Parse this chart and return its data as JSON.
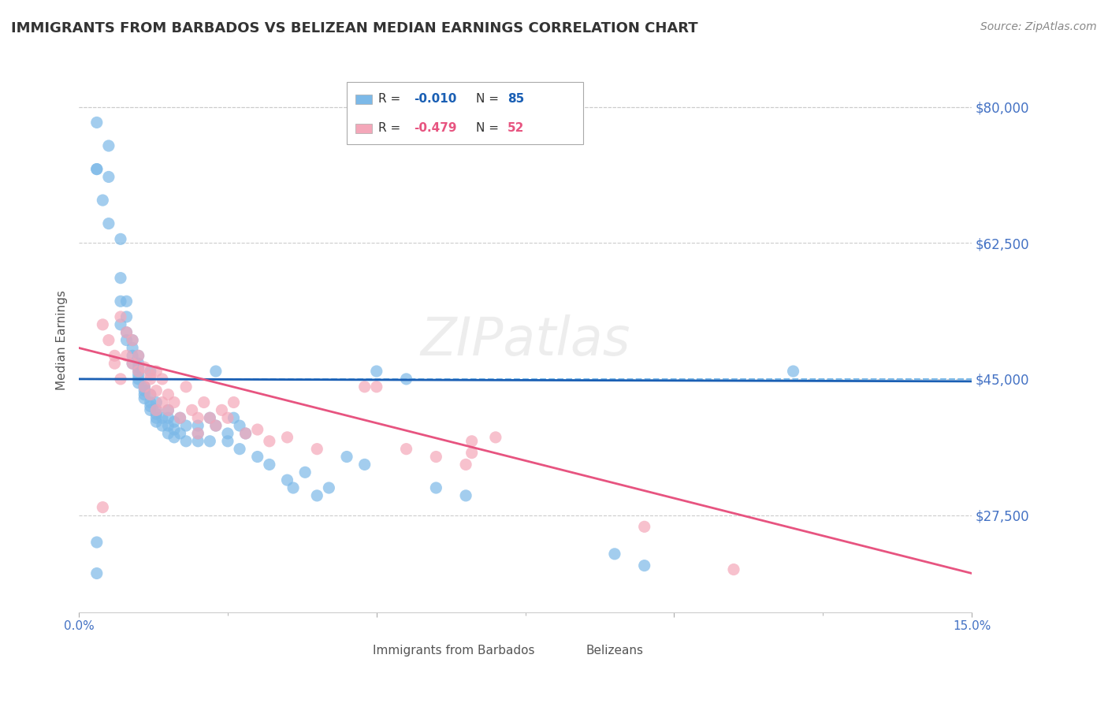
{
  "title": "IMMIGRANTS FROM BARBADOS VS BELIZEAN MEDIAN EARNINGS CORRELATION CHART",
  "source": "Source: ZipAtlas.com",
  "xlabel": "",
  "ylabel": "Median Earnings",
  "xlim": [
    0.0,
    0.15
  ],
  "ylim": [
    15000,
    85000
  ],
  "yticks": [
    17500,
    27500,
    45000,
    62500,
    80000
  ],
  "ytick_labels": [
    "",
    "$27,500",
    "$45,000",
    "$62,500",
    "$80,000"
  ],
  "xticks": [
    0.0,
    0.05,
    0.1,
    0.15
  ],
  "xtick_labels": [
    "0.0%",
    "",
    "",
    "15.0%"
  ],
  "hline_y": 45000,
  "background_color": "#ffffff",
  "grid_color": "#cccccc",
  "blue_color": "#7cb9e8",
  "pink_color": "#f4a7b9",
  "blue_line_color": "#1a5fb4",
  "pink_line_color": "#e75480",
  "axis_label_color": "#4472c4",
  "title_color": "#333333",
  "legend_r1": "R = -0.010",
  "legend_n1": "N = 85",
  "legend_r2": "R = -0.479",
  "legend_n2": "N = 52",
  "legend_label1": "Immigrants from Barbados",
  "legend_label2": "Belizeans",
  "blue_scatter_x": [
    0.003,
    0.003,
    0.005,
    0.005,
    0.005,
    0.007,
    0.007,
    0.007,
    0.007,
    0.008,
    0.008,
    0.008,
    0.009,
    0.009,
    0.009,
    0.009,
    0.01,
    0.01,
    0.01,
    0.01,
    0.01,
    0.01,
    0.011,
    0.011,
    0.011,
    0.011,
    0.011,
    0.012,
    0.012,
    0.012,
    0.012,
    0.013,
    0.013,
    0.013,
    0.013,
    0.013,
    0.014,
    0.014,
    0.015,
    0.015,
    0.015,
    0.015,
    0.016,
    0.016,
    0.016,
    0.017,
    0.017,
    0.018,
    0.018,
    0.02,
    0.02,
    0.02,
    0.022,
    0.022,
    0.023,
    0.025,
    0.025,
    0.026,
    0.027,
    0.027,
    0.028,
    0.03,
    0.032,
    0.035,
    0.036,
    0.038,
    0.04,
    0.042,
    0.045,
    0.048,
    0.05,
    0.055,
    0.06,
    0.065,
    0.09,
    0.095,
    0.003,
    0.004,
    0.008,
    0.01,
    0.012,
    0.023,
    0.12,
    0.003,
    0.003
  ],
  "blue_scatter_y": [
    78000,
    72000,
    75000,
    71000,
    65000,
    63000,
    58000,
    55000,
    52000,
    53000,
    51000,
    50000,
    50000,
    49000,
    48000,
    47000,
    47000,
    46500,
    46000,
    45500,
    45000,
    44500,
    44000,
    44000,
    43500,
    43000,
    42500,
    43000,
    42000,
    41500,
    41000,
    42000,
    41000,
    40500,
    40000,
    39500,
    40000,
    39000,
    41000,
    40000,
    39000,
    38000,
    39500,
    38500,
    37500,
    40000,
    38000,
    39000,
    37000,
    39000,
    38000,
    37000,
    40000,
    37000,
    39000,
    38000,
    37000,
    40000,
    39000,
    36000,
    38000,
    35000,
    34000,
    32000,
    31000,
    33000,
    30000,
    31000,
    35000,
    34000,
    46000,
    45000,
    31000,
    30000,
    22500,
    21000,
    72000,
    68000,
    55000,
    48000,
    46000,
    46000,
    46000,
    24000,
    20000
  ],
  "pink_scatter_x": [
    0.004,
    0.005,
    0.006,
    0.007,
    0.008,
    0.008,
    0.009,
    0.009,
    0.01,
    0.01,
    0.011,
    0.011,
    0.012,
    0.012,
    0.013,
    0.013,
    0.013,
    0.014,
    0.014,
    0.015,
    0.015,
    0.016,
    0.017,
    0.018,
    0.019,
    0.02,
    0.02,
    0.021,
    0.022,
    0.023,
    0.024,
    0.025,
    0.026,
    0.028,
    0.03,
    0.032,
    0.035,
    0.04,
    0.048,
    0.055,
    0.06,
    0.065,
    0.066,
    0.066,
    0.07,
    0.095,
    0.004,
    0.006,
    0.007,
    0.012,
    0.05,
    0.11
  ],
  "pink_scatter_y": [
    52000,
    50000,
    48000,
    53000,
    51000,
    48000,
    50000,
    47000,
    48000,
    46000,
    46500,
    44000,
    45500,
    43000,
    46000,
    43500,
    41000,
    45000,
    42000,
    43000,
    41000,
    42000,
    40000,
    44000,
    41000,
    40000,
    38000,
    42000,
    40000,
    39000,
    41000,
    40000,
    42000,
    38000,
    38500,
    37000,
    37500,
    36000,
    44000,
    36000,
    35000,
    34000,
    37000,
    35500,
    37500,
    26000,
    28500,
    47000,
    45000,
    45000,
    44000,
    20500
  ],
  "blue_trend_x": [
    0.0,
    0.15
  ],
  "blue_trend_y": [
    45000,
    44700
  ],
  "pink_trend_x": [
    0.0,
    0.15
  ],
  "pink_trend_y": [
    49000,
    20000
  ],
  "dashed_hline_color": "#7cb9e8",
  "dashed_hline_y": 45000
}
